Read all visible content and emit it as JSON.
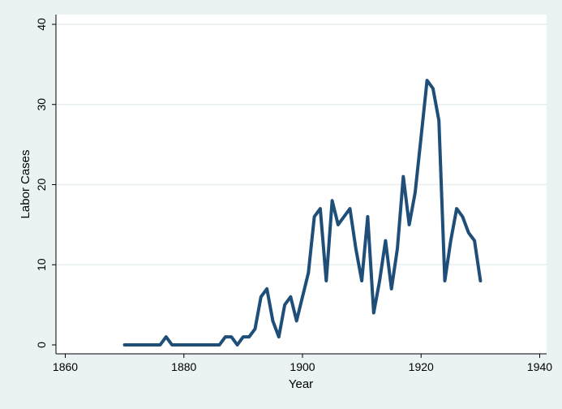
{
  "chart_data": {
    "type": "line",
    "title": "",
    "xlabel": "Year",
    "ylabel": "Labor Cases",
    "xlim": [
      1860,
      1940
    ],
    "ylim": [
      0,
      40
    ],
    "xticks": [
      1860,
      1880,
      1900,
      1920,
      1940
    ],
    "yticks": [
      0,
      10,
      20,
      30,
      40
    ],
    "grid": "horizontal",
    "legend": "none",
    "colors": {
      "line": "#1f4e79",
      "plot_bg": "#ffffff",
      "outer_bg": "#eaf2f3",
      "grid": "#e6eef0"
    },
    "series": [
      {
        "x": [
          1870,
          1871,
          1872,
          1873,
          1874,
          1875,
          1876,
          1877,
          1878,
          1879,
          1880,
          1881,
          1882,
          1883,
          1884,
          1885,
          1886,
          1887,
          1888,
          1889,
          1890,
          1891,
          1892,
          1893,
          1894,
          1895,
          1896,
          1897,
          1898,
          1899,
          1900,
          1901,
          1902,
          1903,
          1904,
          1905,
          1906,
          1907,
          1908,
          1909,
          1910,
          1911,
          1912,
          1913,
          1914,
          1915,
          1916,
          1917,
          1918,
          1919,
          1920,
          1921,
          1922,
          1923,
          1924,
          1925,
          1926,
          1927,
          1928,
          1929,
          1930
        ],
        "values": [
          0,
          0,
          0,
          0,
          0,
          0,
          0,
          1,
          0,
          0,
          0,
          0,
          0,
          0,
          0,
          0,
          0,
          1,
          1,
          0,
          1,
          1,
          2,
          6,
          7,
          3,
          1,
          5,
          6,
          3,
          6,
          9,
          16,
          17,
          8,
          18,
          15,
          16,
          17,
          12,
          8,
          16,
          4,
          8,
          13,
          7,
          12,
          21,
          15,
          19,
          26,
          33,
          32,
          28,
          8,
          13,
          17,
          16,
          14,
          13,
          8
        ]
      }
    ]
  }
}
